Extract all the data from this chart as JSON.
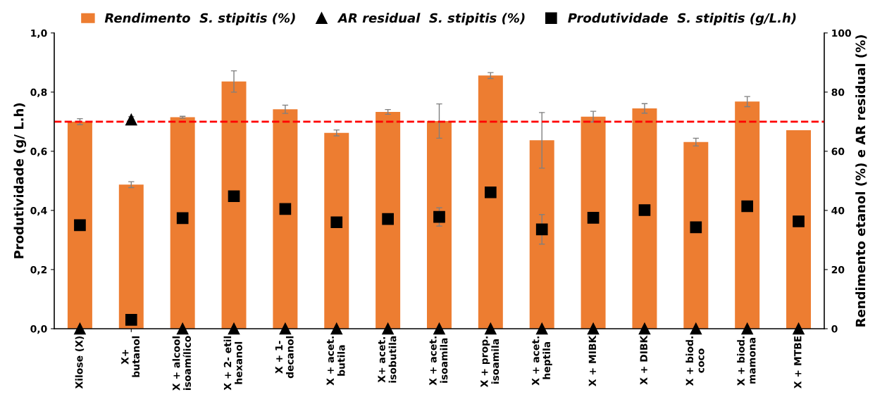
{
  "chart_data": {
    "type": "bar",
    "categories": [
      "Xilose (X)",
      "X+\nbutanol",
      "X + alcool\nisoamílico",
      "X + 2- etil\nhexanol",
      "X + 1-\ndecanol",
      "X + acet.\nbutila",
      "X+ acet.\nisobutila",
      "X + acet.\nisoamila",
      "X + prop.\nisoamila",
      "X + acet.\nheptila",
      "X + MIBK",
      "X + DIBK",
      "X + biod.\ncoco",
      "X + biod.\nmamona",
      "X + MTBE"
    ],
    "series": [
      {
        "name": "Rendimento  S. stipitis (%)",
        "type": "bar",
        "axis": "y2",
        "color": "#ed7d31",
        "values": [
          70,
          48.7,
          71.5,
          83.6,
          74.2,
          66.2,
          73.3,
          70.2,
          85.6,
          63.7,
          71.7,
          74.5,
          63.1,
          76.8,
          67.1
        ],
        "errors": [
          1,
          1,
          0.3,
          3.6,
          1.4,
          1,
          0.8,
          5.8,
          1,
          9.4,
          1.8,
          1.6,
          1.3,
          1.7,
          null
        ]
      },
      {
        "name": "AR residual  S. stipitis (%)",
        "type": "scatter",
        "axis": "y2",
        "marker": "triangle",
        "color": "#000000",
        "values": [
          0,
          70.7,
          0,
          0,
          0,
          0,
          0,
          0,
          0,
          0,
          0,
          0,
          0,
          0,
          0
        ],
        "errors": [
          null,
          1,
          null,
          null,
          null,
          null,
          null,
          null,
          null,
          null,
          null,
          null,
          null,
          null,
          null
        ]
      },
      {
        "name": "Produtividade  S. stipitis (g/L.h)",
        "type": "scatter",
        "axis": "y",
        "marker": "square",
        "color": "#000000",
        "values": [
          0.35,
          0.03,
          0.374,
          0.448,
          0.405,
          0.36,
          0.371,
          0.378,
          0.461,
          0.336,
          0.375,
          0.401,
          0.343,
          0.414,
          0.363
        ],
        "errors": [
          null,
          null,
          null,
          null,
          null,
          null,
          null,
          0.031,
          null,
          0.05,
          null,
          null,
          null,
          null,
          null
        ]
      }
    ],
    "ylabel": "Produtividade (g/ L.h)",
    "y2label": "Rendimento etanol (%) e AR residual (%)",
    "ylim": [
      0,
      1
    ],
    "yticks": [
      {
        "value": 0,
        "label": "0,0"
      },
      {
        "value": 0.2,
        "label": "0,2"
      },
      {
        "value": 0.4,
        "label": "0,4"
      },
      {
        "value": 0.6,
        "label": "0,6"
      },
      {
        "value": 0.8,
        "label": "0,8"
      },
      {
        "value": 1,
        "label": "1,0"
      }
    ],
    "y2lim": [
      0,
      100
    ],
    "y2ticks": [
      0,
      20,
      40,
      60,
      80,
      100
    ],
    "ref_lines": [
      {
        "axis": "y2",
        "value": 70,
        "color": "#ff0000",
        "line_style": "dashed"
      }
    ],
    "grid": false,
    "legend": "top"
  }
}
